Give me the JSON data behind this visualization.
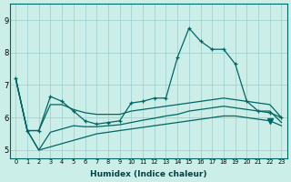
{
  "bg_color": "#cceee8",
  "grid_color": "#99cccc",
  "line_color": "#006666",
  "xlabel": "Humidex (Indice chaleur)",
  "xlim": [
    -0.5,
    23.5
  ],
  "ylim": [
    4.75,
    9.5
  ],
  "xticks": [
    0,
    1,
    2,
    3,
    4,
    5,
    6,
    7,
    8,
    9,
    10,
    11,
    12,
    13,
    14,
    15,
    16,
    17,
    18,
    19,
    20,
    21,
    22,
    23
  ],
  "yticks": [
    5,
    6,
    7,
    8,
    9
  ],
  "line_main": [
    7.2,
    5.6,
    5.6,
    6.65,
    6.5,
    6.2,
    5.9,
    5.8,
    5.85,
    5.9,
    6.45,
    6.5,
    6.6,
    6.6,
    7.85,
    8.75,
    8.35,
    8.1,
    8.1,
    7.65,
    6.5,
    6.2,
    6.15,
    6.0
  ],
  "line2": [
    7.2,
    5.6,
    5.6,
    6.4,
    6.4,
    6.25,
    6.15,
    6.1,
    6.1,
    6.1,
    6.2,
    6.25,
    6.3,
    6.35,
    6.4,
    6.45,
    6.5,
    6.55,
    6.6,
    6.55,
    6.5,
    6.45,
    6.4,
    6.0
  ],
  "line3": [
    7.2,
    5.6,
    5.0,
    5.55,
    5.65,
    5.75,
    5.72,
    5.72,
    5.75,
    5.78,
    5.85,
    5.92,
    5.98,
    6.05,
    6.1,
    6.2,
    6.25,
    6.3,
    6.35,
    6.3,
    6.25,
    6.2,
    6.2,
    5.85
  ],
  "line4": [
    7.2,
    5.6,
    5.0,
    5.1,
    5.2,
    5.3,
    5.4,
    5.5,
    5.55,
    5.6,
    5.65,
    5.7,
    5.75,
    5.8,
    5.85,
    5.9,
    5.95,
    6.0,
    6.05,
    6.05,
    6.0,
    5.95,
    5.9,
    5.75
  ],
  "triangle_x": 22,
  "triangle_y": 5.9
}
